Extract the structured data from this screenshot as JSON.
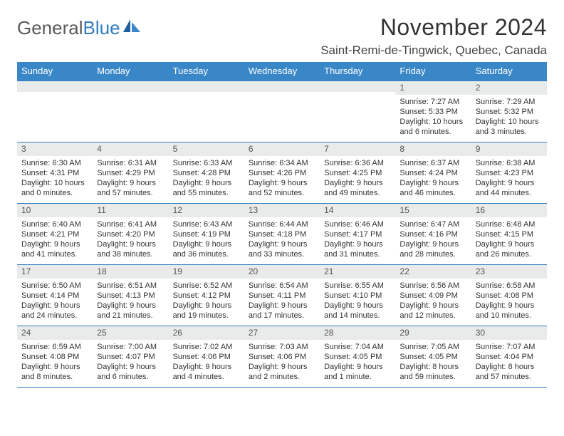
{
  "logo": {
    "word1": "General",
    "word2": "Blue"
  },
  "title": "November 2024",
  "location": "Saint-Remi-de-Tingwick, Quebec, Canada",
  "colors": {
    "header_bg": "#3a87c8",
    "border": "#2e7cc1",
    "daynum_bg": "#e9eaea",
    "text": "#333333",
    "logo_gray": "#5a5a5a",
    "logo_blue": "#2e7cc1"
  },
  "weekdays": [
    "Sunday",
    "Monday",
    "Tuesday",
    "Wednesday",
    "Thursday",
    "Friday",
    "Saturday"
  ],
  "weeks": [
    [
      null,
      null,
      null,
      null,
      null,
      {
        "n": "1",
        "sunrise": "Sunrise: 7:27 AM",
        "sunset": "Sunset: 5:33 PM",
        "day1": "Daylight: 10 hours",
        "day2": "and 6 minutes."
      },
      {
        "n": "2",
        "sunrise": "Sunrise: 7:29 AM",
        "sunset": "Sunset: 5:32 PM",
        "day1": "Daylight: 10 hours",
        "day2": "and 3 minutes."
      }
    ],
    [
      {
        "n": "3",
        "sunrise": "Sunrise: 6:30 AM",
        "sunset": "Sunset: 4:31 PM",
        "day1": "Daylight: 10 hours",
        "day2": "and 0 minutes."
      },
      {
        "n": "4",
        "sunrise": "Sunrise: 6:31 AM",
        "sunset": "Sunset: 4:29 PM",
        "day1": "Daylight: 9 hours",
        "day2": "and 57 minutes."
      },
      {
        "n": "5",
        "sunrise": "Sunrise: 6:33 AM",
        "sunset": "Sunset: 4:28 PM",
        "day1": "Daylight: 9 hours",
        "day2": "and 55 minutes."
      },
      {
        "n": "6",
        "sunrise": "Sunrise: 6:34 AM",
        "sunset": "Sunset: 4:26 PM",
        "day1": "Daylight: 9 hours",
        "day2": "and 52 minutes."
      },
      {
        "n": "7",
        "sunrise": "Sunrise: 6:36 AM",
        "sunset": "Sunset: 4:25 PM",
        "day1": "Daylight: 9 hours",
        "day2": "and 49 minutes."
      },
      {
        "n": "8",
        "sunrise": "Sunrise: 6:37 AM",
        "sunset": "Sunset: 4:24 PM",
        "day1": "Daylight: 9 hours",
        "day2": "and 46 minutes."
      },
      {
        "n": "9",
        "sunrise": "Sunrise: 6:38 AM",
        "sunset": "Sunset: 4:23 PM",
        "day1": "Daylight: 9 hours",
        "day2": "and 44 minutes."
      }
    ],
    [
      {
        "n": "10",
        "sunrise": "Sunrise: 6:40 AM",
        "sunset": "Sunset: 4:21 PM",
        "day1": "Daylight: 9 hours",
        "day2": "and 41 minutes."
      },
      {
        "n": "11",
        "sunrise": "Sunrise: 6:41 AM",
        "sunset": "Sunset: 4:20 PM",
        "day1": "Daylight: 9 hours",
        "day2": "and 38 minutes."
      },
      {
        "n": "12",
        "sunrise": "Sunrise: 6:43 AM",
        "sunset": "Sunset: 4:19 PM",
        "day1": "Daylight: 9 hours",
        "day2": "and 36 minutes."
      },
      {
        "n": "13",
        "sunrise": "Sunrise: 6:44 AM",
        "sunset": "Sunset: 4:18 PM",
        "day1": "Daylight: 9 hours",
        "day2": "and 33 minutes."
      },
      {
        "n": "14",
        "sunrise": "Sunrise: 6:46 AM",
        "sunset": "Sunset: 4:17 PM",
        "day1": "Daylight: 9 hours",
        "day2": "and 31 minutes."
      },
      {
        "n": "15",
        "sunrise": "Sunrise: 6:47 AM",
        "sunset": "Sunset: 4:16 PM",
        "day1": "Daylight: 9 hours",
        "day2": "and 28 minutes."
      },
      {
        "n": "16",
        "sunrise": "Sunrise: 6:48 AM",
        "sunset": "Sunset: 4:15 PM",
        "day1": "Daylight: 9 hours",
        "day2": "and 26 minutes."
      }
    ],
    [
      {
        "n": "17",
        "sunrise": "Sunrise: 6:50 AM",
        "sunset": "Sunset: 4:14 PM",
        "day1": "Daylight: 9 hours",
        "day2": "and 24 minutes."
      },
      {
        "n": "18",
        "sunrise": "Sunrise: 6:51 AM",
        "sunset": "Sunset: 4:13 PM",
        "day1": "Daylight: 9 hours",
        "day2": "and 21 minutes."
      },
      {
        "n": "19",
        "sunrise": "Sunrise: 6:52 AM",
        "sunset": "Sunset: 4:12 PM",
        "day1": "Daylight: 9 hours",
        "day2": "and 19 minutes."
      },
      {
        "n": "20",
        "sunrise": "Sunrise: 6:54 AM",
        "sunset": "Sunset: 4:11 PM",
        "day1": "Daylight: 9 hours",
        "day2": "and 17 minutes."
      },
      {
        "n": "21",
        "sunrise": "Sunrise: 6:55 AM",
        "sunset": "Sunset: 4:10 PM",
        "day1": "Daylight: 9 hours",
        "day2": "and 14 minutes."
      },
      {
        "n": "22",
        "sunrise": "Sunrise: 6:56 AM",
        "sunset": "Sunset: 4:09 PM",
        "day1": "Daylight: 9 hours",
        "day2": "and 12 minutes."
      },
      {
        "n": "23",
        "sunrise": "Sunrise: 6:58 AM",
        "sunset": "Sunset: 4:08 PM",
        "day1": "Daylight: 9 hours",
        "day2": "and 10 minutes."
      }
    ],
    [
      {
        "n": "24",
        "sunrise": "Sunrise: 6:59 AM",
        "sunset": "Sunset: 4:08 PM",
        "day1": "Daylight: 9 hours",
        "day2": "and 8 minutes."
      },
      {
        "n": "25",
        "sunrise": "Sunrise: 7:00 AM",
        "sunset": "Sunset: 4:07 PM",
        "day1": "Daylight: 9 hours",
        "day2": "and 6 minutes."
      },
      {
        "n": "26",
        "sunrise": "Sunrise: 7:02 AM",
        "sunset": "Sunset: 4:06 PM",
        "day1": "Daylight: 9 hours",
        "day2": "and 4 minutes."
      },
      {
        "n": "27",
        "sunrise": "Sunrise: 7:03 AM",
        "sunset": "Sunset: 4:06 PM",
        "day1": "Daylight: 9 hours",
        "day2": "and 2 minutes."
      },
      {
        "n": "28",
        "sunrise": "Sunrise: 7:04 AM",
        "sunset": "Sunset: 4:05 PM",
        "day1": "Daylight: 9 hours",
        "day2": "and 1 minute."
      },
      {
        "n": "29",
        "sunrise": "Sunrise: 7:05 AM",
        "sunset": "Sunset: 4:05 PM",
        "day1": "Daylight: 8 hours",
        "day2": "and 59 minutes."
      },
      {
        "n": "30",
        "sunrise": "Sunrise: 7:07 AM",
        "sunset": "Sunset: 4:04 PM",
        "day1": "Daylight: 8 hours",
        "day2": "and 57 minutes."
      }
    ]
  ]
}
